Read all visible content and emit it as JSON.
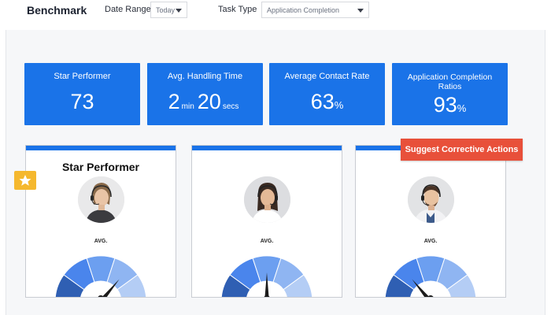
{
  "header": {
    "title": "Benchmark",
    "date_range_label": "Date Range",
    "date_range_value": "Today",
    "task_type_label": "Task Type",
    "task_type_value": "Application Completion"
  },
  "stats": [
    {
      "label": "Star Performer",
      "value": "73"
    },
    {
      "label": "Avg. Handling Time",
      "value_min": "2",
      "unit_min": "min",
      "value_sec": "20",
      "unit_sec": "secs"
    },
    {
      "label": "Average Contact Rate",
      "value": "63",
      "unit": "%"
    },
    {
      "label": "Application Completion Ratios",
      "value": "93",
      "unit": "%"
    }
  ],
  "cards": [
    {
      "title": "Star Performer",
      "avg_label": "AVG.",
      "gauge_level": 0.72
    },
    {
      "title": "",
      "avg_label": "AVG.",
      "gauge_level": 0.5
    },
    {
      "title": "",
      "avg_label": "AVG.",
      "gauge_level": 0.28
    }
  ],
  "actions": {
    "suggest_label": "Suggest Corrective Actions"
  },
  "icons": {
    "badge": "star-icon",
    "dropdown": "caret-down-icon"
  },
  "colors": {
    "primary": "#1a73e8",
    "action": "#e8503a",
    "badge": "#f5b82e",
    "gauge": [
      "#2f5fb3",
      "#4a85ec",
      "#6c9ff0",
      "#8fb5f2",
      "#b4cdf5"
    ]
  }
}
